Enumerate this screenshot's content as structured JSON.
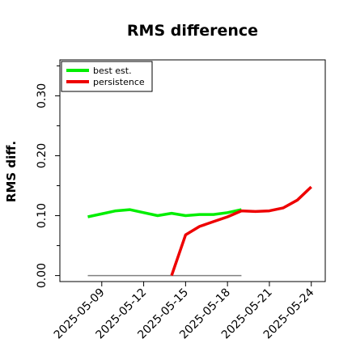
{
  "chart_data": {
    "type": "line",
    "title": "RMS difference",
    "ylabel": "RMS diff.",
    "xlabel": "",
    "ylim": [
      -0.01,
      0.36
    ],
    "xlim": [
      "2025-05-06",
      "2025-05-25"
    ],
    "yticks": [
      0.0,
      0.1,
      0.2,
      0.3
    ],
    "ytick_labels": [
      "0.00",
      "0.10",
      "0.20",
      "0.30"
    ],
    "yminor_ticks": [
      0.05,
      0.15,
      0.25,
      0.35
    ],
    "xticks": [
      "2025-05-09",
      "2025-05-12",
      "2025-05-15",
      "2025-05-18",
      "2025-05-21",
      "2025-05-24"
    ],
    "grid": false,
    "legend_position": "top-left",
    "series": [
      {
        "name": "best est.",
        "color": "#00ee00",
        "x": [
          "2025-05-08",
          "2025-05-10",
          "2025-05-11",
          "2025-05-12",
          "2025-05-13",
          "2025-05-14",
          "2025-05-15",
          "2025-05-16",
          "2025-05-17",
          "2025-05-18",
          "2025-05-19"
        ],
        "y": [
          0.098,
          0.108,
          0.11,
          0.105,
          0.1,
          0.104,
          0.1,
          0.102,
          0.102,
          0.105,
          0.11
        ]
      },
      {
        "name": "persistence",
        "color": "#ee0000",
        "x": [
          "2025-05-14",
          "2025-05-15",
          "2025-05-16",
          "2025-05-17",
          "2025-05-18",
          "2025-05-19",
          "2025-05-20",
          "2025-05-21",
          "2025-05-22",
          "2025-05-23",
          "2025-05-24"
        ],
        "y": [
          0.0,
          0.068,
          0.082,
          0.09,
          0.098,
          0.108,
          0.107,
          0.108,
          0.113,
          0.126,
          0.148
        ]
      }
    ],
    "baseline": {
      "color": "#808080",
      "x": [
        "2025-05-08",
        "2025-05-19"
      ],
      "y": [
        0.0,
        0.0
      ]
    }
  }
}
